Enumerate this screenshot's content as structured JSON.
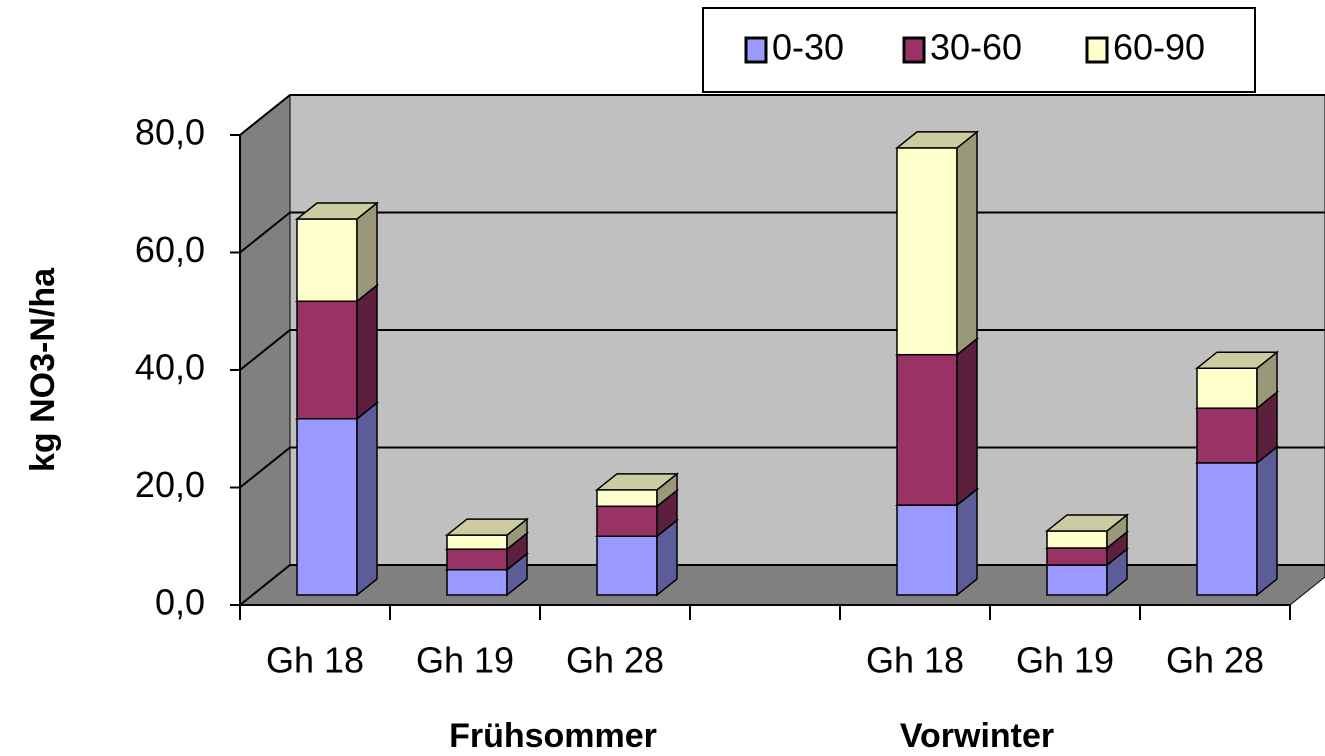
{
  "chart_data": {
    "type": "bar3d_stacked",
    "y_label": "kg NO3-N/ha",
    "categories": [
      "Gh 18",
      "Gh 19",
      "Gh 28",
      null,
      "Gh 18",
      "Gh 19",
      "Gh 28"
    ],
    "groups": [
      "Frühsommer",
      "Vorwinter"
    ],
    "series": [
      {
        "name": "0-30",
        "color": "#9999ff",
        "values": [
          30,
          4.3,
          10,
          null,
          15.3,
          5.1,
          22.5
        ]
      },
      {
        "name": "30-60",
        "color": "#993366",
        "values": [
          20,
          3.5,
          5.1,
          null,
          25.6,
          2.9,
          9.3
        ]
      },
      {
        "name": "60-90",
        "color": "#ffffcc",
        "values": [
          14,
          2.4,
          2.8,
          null,
          35.2,
          2.9,
          6.8
        ]
      }
    ],
    "ylim": [
      0,
      80
    ],
    "yticks": [
      {
        "value": 0,
        "label": "0,0"
      },
      {
        "value": 20,
        "label": "20,0"
      },
      {
        "value": 40,
        "label": "40,0"
      },
      {
        "value": 60,
        "label": "60,0"
      },
      {
        "value": 80,
        "label": "80,0"
      }
    ],
    "grid": true,
    "legend": "top-right"
  }
}
